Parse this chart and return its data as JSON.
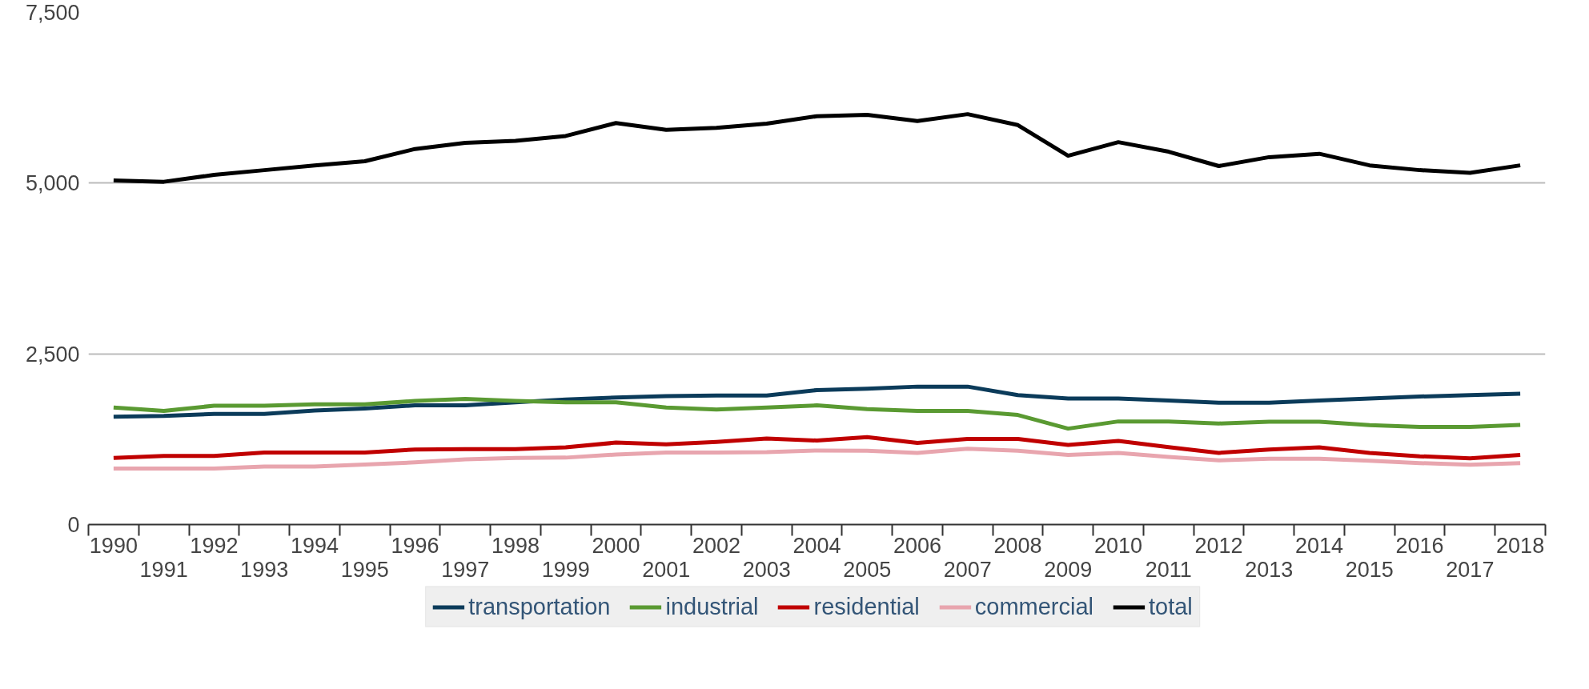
{
  "chart_data": {
    "type": "line",
    "categories": [
      "1990",
      "1991",
      "1992",
      "1993",
      "1994",
      "1995",
      "1996",
      "1997",
      "1998",
      "1999",
      "2000",
      "2001",
      "2002",
      "2003",
      "2004",
      "2005",
      "2006",
      "2007",
      "2008",
      "2009",
      "2010",
      "2011",
      "2012",
      "2013",
      "2014",
      "2015",
      "2016",
      "2017",
      "2018"
    ],
    "series": [
      {
        "name": "transportation",
        "color": "#0b3b5a",
        "values": [
          1580,
          1590,
          1620,
          1620,
          1670,
          1700,
          1745,
          1745,
          1790,
          1830,
          1860,
          1880,
          1890,
          1890,
          1970,
          1990,
          2020,
          2020,
          1895,
          1845,
          1845,
          1815,
          1785,
          1785,
          1815,
          1845,
          1875,
          1895,
          1915
        ]
      },
      {
        "name": "industrial",
        "color": "#5a9a32",
        "values": [
          1715,
          1665,
          1740,
          1740,
          1760,
          1760,
          1810,
          1840,
          1810,
          1790,
          1790,
          1715,
          1685,
          1715,
          1745,
          1690,
          1665,
          1665,
          1605,
          1405,
          1510,
          1510,
          1480,
          1505,
          1505,
          1455,
          1430,
          1430,
          1460
        ]
      },
      {
        "name": "residential",
        "color": "#c00000",
        "values": [
          975,
          1005,
          1005,
          1055,
          1055,
          1055,
          1100,
          1105,
          1105,
          1130,
          1200,
          1175,
          1210,
          1260,
          1230,
          1280,
          1195,
          1255,
          1255,
          1165,
          1225,
          1135,
          1050,
          1100,
          1130,
          1050,
          1000,
          970,
          1020
        ]
      },
      {
        "name": "commercial",
        "color": "#e8a5ae",
        "values": [
          820,
          820,
          820,
          850,
          850,
          880,
          910,
          955,
          975,
          980,
          1025,
          1055,
          1055,
          1060,
          1085,
          1080,
          1050,
          1110,
          1080,
          1020,
          1050,
          990,
          940,
          965,
          965,
          935,
          900,
          875,
          900
        ]
      },
      {
        "name": "total",
        "color": "#000000",
        "values": [
          5040,
          5020,
          5120,
          5190,
          5260,
          5320,
          5500,
          5590,
          5620,
          5690,
          5880,
          5780,
          5810,
          5870,
          5980,
          6000,
          5910,
          6010,
          5850,
          5400,
          5600,
          5460,
          5250,
          5380,
          5430,
          5260,
          5190,
          5150,
          5260
        ]
      }
    ],
    "ylim": [
      0,
      7500
    ],
    "yticks": [
      0,
      {
        "value": 2500,
        "label": "2,500"
      },
      {
        "value": 5000,
        "label": "5,000"
      },
      {
        "value": 7500,
        "label": "7,500"
      }
    ],
    "grid": "y",
    "legend": "bottom",
    "marker": "none",
    "line_style": "solid"
  }
}
